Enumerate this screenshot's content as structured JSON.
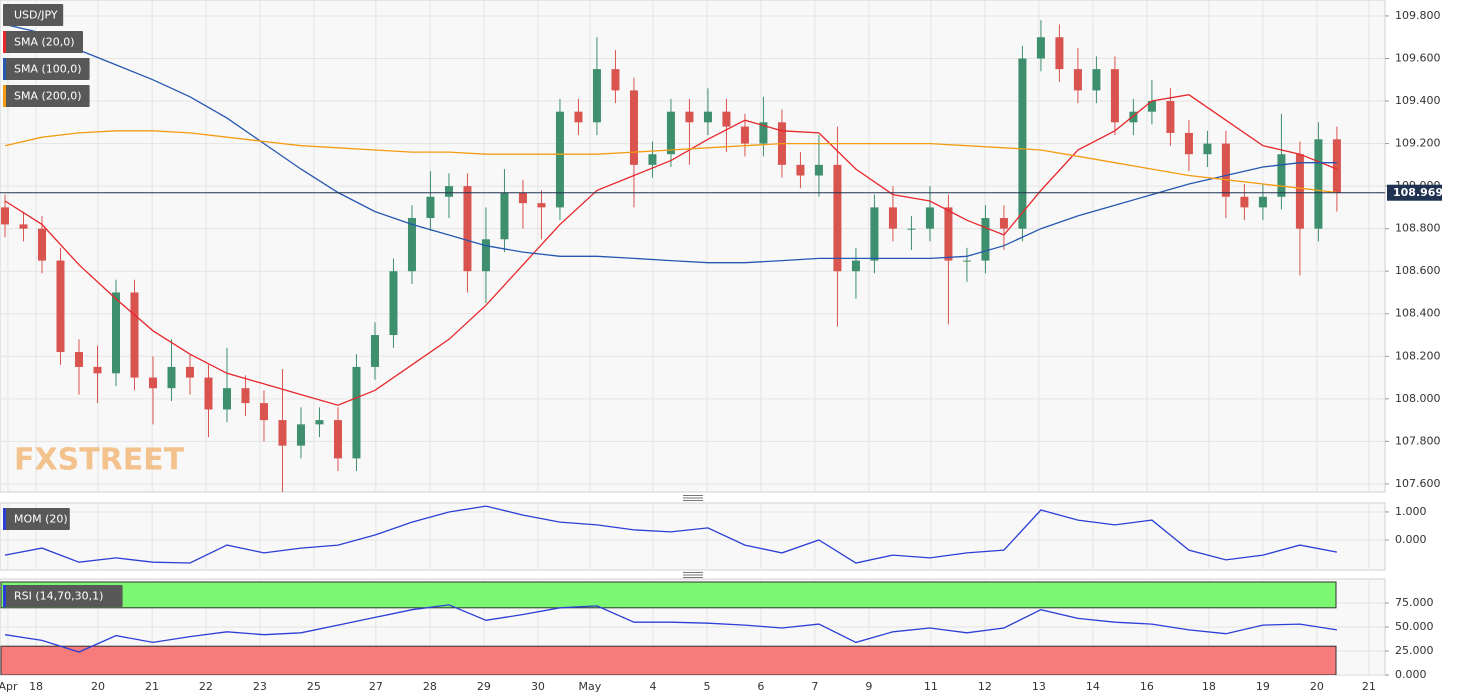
{
  "chart_data": [
    {
      "type": "candlestick",
      "title": "USD/JPY",
      "watermark": "FXSTREET",
      "xlim": [
        -0.27,
        74.6
      ],
      "ylim": [
        107.562,
        109.875
      ],
      "grid": true,
      "yticks": [
        {
          "value": 107.6,
          "label": "107.600"
        },
        {
          "value": 107.8,
          "label": "107.800"
        },
        {
          "value": 108.0,
          "label": "108.000"
        },
        {
          "value": 108.2,
          "label": "108.200"
        },
        {
          "value": 108.4,
          "label": "108.400"
        },
        {
          "value": 108.6,
          "label": "108.600"
        },
        {
          "value": 108.8,
          "label": "108.800"
        },
        {
          "value": 109.0,
          "label": "109.000"
        },
        {
          "value": 109.2,
          "label": "109.200"
        },
        {
          "value": 109.4,
          "label": "109.400"
        },
        {
          "value": 109.6,
          "label": "109.600"
        },
        {
          "value": 109.8,
          "label": "109.800"
        }
      ],
      "xticks": [
        {
          "value": 0.16,
          "label": "Apr"
        },
        {
          "value": 1.68,
          "label": "18"
        },
        {
          "value": 5.03,
          "label": "20"
        },
        {
          "value": 7.95,
          "label": "21"
        },
        {
          "value": 10.86,
          "label": "22"
        },
        {
          "value": 13.78,
          "label": "23"
        },
        {
          "value": 16.7,
          "label": "25"
        },
        {
          "value": 20.05,
          "label": "27"
        },
        {
          "value": 22.97,
          "label": "28"
        },
        {
          "value": 25.89,
          "label": "29"
        },
        {
          "value": 28.81,
          "label": "30"
        },
        {
          "value": 31.62,
          "label": "May"
        },
        {
          "value": 35.03,
          "label": "4"
        },
        {
          "value": 37.95,
          "label": "5"
        },
        {
          "value": 40.86,
          "label": "6"
        },
        {
          "value": 43.78,
          "label": "7"
        },
        {
          "value": 46.7,
          "label": "9"
        },
        {
          "value": 50.05,
          "label": "11"
        },
        {
          "value": 52.97,
          "label": "12"
        },
        {
          "value": 55.89,
          "label": "13"
        },
        {
          "value": 58.81,
          "label": "14"
        },
        {
          "value": 61.73,
          "label": "16"
        },
        {
          "value": 65.08,
          "label": "18"
        },
        {
          "value": 68,
          "label": "19"
        },
        {
          "value": 70.92,
          "label": "20"
        },
        {
          "value": 73.73,
          "label": "21"
        }
      ],
      "up_color": "#3d8f6d",
      "down_color": "#d9534f",
      "last_price": 108.969,
      "last_price_color": "#1f3350",
      "candles": {
        "x": [
          0,
          1,
          2,
          3,
          4,
          5,
          6,
          7,
          8,
          9,
          10,
          11,
          12,
          13,
          14,
          15,
          16,
          17,
          18,
          19,
          20,
          21,
          22,
          23,
          24,
          25,
          26,
          27,
          28,
          29,
          30,
          31,
          32,
          33,
          34,
          35,
          36,
          37,
          38,
          39,
          40,
          41,
          42,
          43,
          44,
          45,
          46,
          47,
          48,
          49,
          50,
          51,
          52,
          53,
          54,
          55,
          56,
          57,
          58,
          59,
          60,
          61,
          62,
          63,
          64,
          65,
          66,
          67,
          68,
          69,
          70,
          71,
          72
        ],
        "open": [
          108.9,
          108.82,
          108.8,
          108.65,
          108.22,
          108.15,
          108.12,
          108.5,
          108.1,
          108.05,
          108.15,
          108.1,
          107.95,
          108.05,
          107.98,
          107.9,
          107.78,
          107.88,
          107.9,
          107.72,
          108.15,
          108.3,
          108.6,
          108.85,
          108.95,
          109.0,
          108.6,
          108.75,
          108.97,
          108.92,
          108.9,
          109.35,
          109.3,
          109.55,
          109.45,
          109.1,
          109.15,
          109.35,
          109.3,
          109.35,
          109.28,
          109.2,
          109.3,
          109.1,
          109.05,
          109.1,
          108.6,
          108.65,
          108.9,
          108.8,
          108.8,
          108.9,
          108.65,
          108.65,
          108.85,
          108.8,
          109.6,
          109.7,
          109.55,
          109.45,
          109.55,
          109.3,
          109.35,
          109.4,
          109.25,
          109.15,
          109.2,
          108.95,
          108.9,
          108.95,
          109.15,
          108.8,
          109.22
        ],
        "high": [
          108.96,
          108.88,
          108.86,
          108.71,
          108.28,
          108.25,
          108.56,
          108.56,
          108.2,
          108.28,
          108.21,
          108.16,
          108.24,
          108.11,
          108.04,
          108.14,
          107.96,
          107.96,
          107.96,
          108.21,
          108.36,
          108.66,
          108.91,
          109.07,
          109.06,
          109.06,
          108.9,
          109.08,
          109.03,
          108.98,
          109.41,
          109.41,
          109.7,
          109.64,
          109.51,
          109.21,
          109.41,
          109.41,
          109.46,
          109.41,
          109.34,
          109.42,
          109.36,
          109.16,
          109.24,
          109.28,
          108.71,
          108.96,
          109.0,
          108.86,
          109.0,
          108.96,
          108.71,
          108.91,
          108.91,
          109.66,
          109.78,
          109.76,
          109.65,
          109.61,
          109.61,
          109.41,
          109.5,
          109.46,
          109.31,
          109.26,
          109.26,
          109.01,
          109.01,
          109.34,
          109.21,
          109.3,
          109.28
        ],
        "low": [
          108.76,
          108.74,
          108.59,
          108.16,
          108.02,
          107.98,
          108.06,
          108.04,
          107.88,
          107.99,
          108.02,
          107.82,
          107.89,
          107.92,
          107.8,
          107.55,
          107.72,
          107.82,
          107.66,
          107.66,
          108.09,
          108.24,
          108.54,
          108.79,
          108.85,
          108.5,
          108.45,
          108.69,
          108.8,
          108.75,
          108.84,
          109.24,
          109.24,
          109.39,
          108.9,
          109.04,
          109.09,
          109.1,
          109.24,
          109.16,
          109.14,
          109.14,
          109.04,
          108.99,
          108.95,
          108.34,
          108.47,
          108.59,
          108.74,
          108.7,
          108.74,
          108.35,
          108.55,
          108.59,
          108.7,
          108.74,
          109.54,
          109.49,
          109.39,
          109.39,
          109.24,
          109.24,
          109.29,
          109.19,
          109.07,
          109.09,
          108.85,
          108.84,
          108.84,
          108.89,
          108.58,
          108.74,
          108.88
        ],
        "close": [
          108.82,
          108.8,
          108.65,
          108.22,
          108.15,
          108.12,
          108.5,
          108.1,
          108.05,
          108.15,
          108.1,
          107.95,
          108.05,
          107.98,
          107.9,
          107.78,
          107.88,
          107.9,
          107.72,
          108.15,
          108.3,
          108.6,
          108.85,
          108.95,
          109.0,
          108.6,
          108.75,
          108.97,
          108.92,
          108.9,
          109.35,
          109.3,
          109.55,
          109.45,
          109.1,
          109.15,
          109.35,
          109.3,
          109.35,
          109.28,
          109.2,
          109.3,
          109.1,
          109.05,
          109.1,
          108.6,
          108.65,
          108.9,
          108.8,
          108.8,
          108.9,
          108.65,
          108.65,
          108.85,
          108.8,
          109.6,
          109.7,
          109.55,
          109.45,
          109.55,
          109.3,
          109.35,
          109.4,
          109.25,
          109.15,
          109.2,
          108.95,
          108.9,
          108.95,
          109.15,
          108.8,
          109.22,
          108.969
        ]
      },
      "series": [
        {
          "name": "SMA (20,0)",
          "color": "#e8262b",
          "x": [
            0,
            2,
            4,
            6,
            8,
            10,
            12,
            14,
            16,
            18,
            20,
            22,
            24,
            26,
            28,
            30,
            32,
            34,
            36,
            38,
            40,
            42,
            44,
            46,
            48,
            50,
            52,
            54,
            56,
            58,
            60,
            62,
            64,
            66,
            68,
            70,
            72
          ],
          "values": [
            108.93,
            108.82,
            108.63,
            108.47,
            108.32,
            108.21,
            108.12,
            108.07,
            108.02,
            107.97,
            108.04,
            108.16,
            108.28,
            108.44,
            108.63,
            108.82,
            108.98,
            109.05,
            109.12,
            109.22,
            109.31,
            109.26,
            109.25,
            109.08,
            108.96,
            108.93,
            108.84,
            108.77,
            108.98,
            109.17,
            109.26,
            109.4,
            109.43,
            109.31,
            109.19,
            109.15,
            109.08
          ]
        },
        {
          "name": "SMA (100,0)",
          "color": "#2557b0",
          "x": [
            0,
            2,
            4,
            6,
            8,
            10,
            12,
            14,
            16,
            18,
            20,
            22,
            24,
            26,
            28,
            30,
            32,
            34,
            36,
            38,
            40,
            42,
            44,
            46,
            48,
            50,
            52,
            54,
            56,
            58,
            60,
            62,
            64,
            66,
            68,
            70,
            72
          ],
          "values": [
            109.76,
            109.72,
            109.64,
            109.57,
            109.5,
            109.42,
            109.32,
            109.2,
            109.08,
            108.97,
            108.88,
            108.82,
            108.77,
            108.72,
            108.69,
            108.67,
            108.67,
            108.66,
            108.65,
            108.64,
            108.64,
            108.65,
            108.66,
            108.66,
            108.66,
            108.66,
            108.67,
            108.72,
            108.8,
            108.86,
            108.91,
            108.96,
            109.01,
            109.05,
            109.09,
            109.11,
            109.11
          ]
        },
        {
          "name": "SMA (200,0)",
          "color": "#f39c12",
          "x": [
            0,
            2,
            4,
            6,
            8,
            10,
            12,
            14,
            16,
            18,
            20,
            22,
            24,
            26,
            28,
            30,
            32,
            34,
            36,
            38,
            40,
            42,
            44,
            46,
            48,
            50,
            52,
            54,
            56,
            58,
            60,
            62,
            64,
            66,
            68,
            70,
            72
          ],
          "values": [
            109.19,
            109.23,
            109.25,
            109.26,
            109.26,
            109.25,
            109.23,
            109.21,
            109.19,
            109.18,
            109.17,
            109.16,
            109.16,
            109.15,
            109.15,
            109.15,
            109.15,
            109.16,
            109.17,
            109.18,
            109.19,
            109.2,
            109.2,
            109.2,
            109.2,
            109.2,
            109.19,
            109.18,
            109.17,
            109.14,
            109.11,
            109.08,
            109.05,
            109.03,
            109.01,
            108.99,
            108.97
          ]
        }
      ]
    },
    {
      "type": "line",
      "xlim": [
        -0.27,
        74.6
      ],
      "ylim": [
        -1.07,
        1.32
      ],
      "yticks": [
        {
          "value": 0,
          "label": "0.000"
        },
        {
          "value": 1,
          "label": "1.000"
        }
      ],
      "series": [
        {
          "name": "MOM (20)",
          "color": "#2b3fd6",
          "x": [
            0,
            2,
            4,
            6,
            8,
            10,
            12,
            14,
            16,
            18,
            20,
            22,
            24,
            26,
            28,
            30,
            32,
            34,
            36,
            38,
            40,
            42,
            44,
            46,
            48,
            50,
            52,
            54,
            56,
            58,
            60,
            62,
            64,
            66,
            68,
            70,
            72
          ],
          "values": [
            -0.54,
            -0.29,
            -0.79,
            -0.64,
            -0.79,
            -0.82,
            -0.18,
            -0.46,
            -0.29,
            -0.18,
            0.18,
            0.64,
            1.0,
            1.21,
            0.89,
            0.64,
            0.54,
            0.36,
            0.29,
            0.43,
            -0.18,
            -0.46,
            0.0,
            -0.82,
            -0.54,
            -0.64,
            -0.46,
            -0.36,
            1.07,
            0.71,
            0.54,
            0.71,
            -0.36,
            -0.71,
            -0.54,
            -0.18,
            -0.43
          ]
        }
      ]
    },
    {
      "type": "rsi",
      "xlim": [
        -0.27,
        74.6
      ],
      "ylim": [
        0,
        100
      ],
      "overbought": 70,
      "oversold": 30,
      "overbought_color": "#7cf772",
      "oversold_color": "#f77b7b",
      "yticks": [
        {
          "value": 0,
          "label": "0.000"
        },
        {
          "value": 25,
          "label": "25.000"
        },
        {
          "value": 50,
          "label": "50.000"
        },
        {
          "value": 75,
          "label": "75.000"
        }
      ],
      "series": [
        {
          "name": "RSI (14,70,30,1)",
          "color": "#2b3fd6",
          "x": [
            0,
            2,
            4,
            6,
            8,
            10,
            12,
            14,
            16,
            18,
            20,
            22,
            24,
            26,
            28,
            30,
            32,
            34,
            36,
            38,
            40,
            42,
            44,
            46,
            48,
            50,
            52,
            54,
            56,
            58,
            60,
            62,
            64,
            66,
            68,
            70,
            72
          ],
          "values": [
            42,
            36,
            24,
            41,
            34,
            40,
            45,
            42,
            44,
            52,
            60,
            68,
            73,
            57,
            63,
            70,
            72,
            55,
            55,
            54,
            52,
            49,
            53,
            34,
            45,
            49,
            44,
            49,
            68,
            59,
            55,
            53,
            47,
            43,
            52,
            53,
            47
          ]
        }
      ]
    }
  ]
}
